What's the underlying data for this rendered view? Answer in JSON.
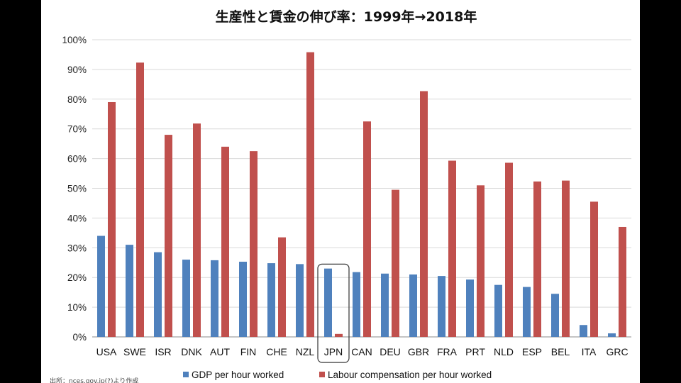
{
  "chart_data": {
    "type": "bar",
    "title": "生産性と賃金の伸び率：1999年→2018年",
    "categories": [
      "USA",
      "SWE",
      "ISR",
      "DNK",
      "AUT",
      "FIN",
      "CHE",
      "NZL",
      "JPN",
      "CAN",
      "DEU",
      "GBR",
      "FRA",
      "PRT",
      "NLD",
      "ESP",
      "BEL",
      "ITA",
      "GRC"
    ],
    "series": [
      {
        "name": "GDP per hour worked",
        "color": "#4f81bd",
        "values": [
          34,
          31,
          28.5,
          26,
          25.8,
          25.3,
          24.8,
          24.5,
          23,
          21.8,
          21.3,
          21,
          20.5,
          19.3,
          17.5,
          16.8,
          14.5,
          4,
          1.2
        ]
      },
      {
        "name": "Labour compensation per hour worked",
        "color": "#c0504d",
        "values": [
          79,
          92.3,
          68,
          71.8,
          64,
          62.5,
          33.5,
          95.8,
          1,
          72.5,
          49.5,
          82.7,
          59.3,
          51,
          58.6,
          52.3,
          52.6,
          45.5,
          37
        ]
      }
    ],
    "ylim": [
      0,
      100
    ],
    "yticks": [
      "0%",
      "10%",
      "20%",
      "30%",
      "40%",
      "50%",
      "60%",
      "70%",
      "80%",
      "90%",
      "100%"
    ],
    "grid": true,
    "legend": "bottom",
    "highlight_category": "JPN"
  },
  "source_note": "出所：nces.gov.jp(?)より作成"
}
